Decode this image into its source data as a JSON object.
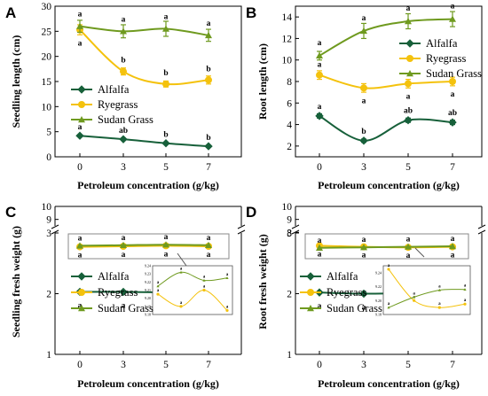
{
  "chart_data": [
    {
      "type": "line",
      "panel": "A",
      "ylabel": "Seedling length (cm)",
      "xlabel": "Petroleum concentration (g/kg)",
      "x": [
        0,
        3,
        5,
        7
      ],
      "xticks": [
        "0",
        "3",
        "5",
        "7"
      ],
      "ylim": [
        0,
        30
      ],
      "yticks": [
        0,
        5,
        10,
        15,
        20,
        25,
        30
      ],
      "legend": [
        "Alfalfa",
        "Ryegrass",
        "Sudan Grass"
      ],
      "series": [
        {
          "name": "Alfalfa",
          "values": [
            4.2,
            3.5,
            2.7,
            2.1
          ],
          "errors": [
            0.2,
            0.2,
            0.2,
            0.2
          ],
          "labels": [
            "a",
            "ab",
            "b",
            "b"
          ]
        },
        {
          "name": "Ryegrass",
          "values": [
            25.3,
            17.0,
            14.5,
            15.3
          ],
          "errors": [
            1.0,
            0.7,
            0.6,
            0.8
          ],
          "labels": [
            "a",
            "b",
            "b",
            "b"
          ]
        },
        {
          "name": "Sudan Grass",
          "values": [
            26.0,
            25.0,
            25.5,
            24.2
          ],
          "errors": [
            1.2,
            1.3,
            1.5,
            1.2
          ],
          "labels": [
            "a",
            "a",
            "a",
            "a"
          ]
        }
      ]
    },
    {
      "type": "line",
      "panel": "B",
      "ylabel": "Root length  (cm)",
      "xlabel": "Petroleum concentration  (g/kg)",
      "x": [
        0,
        3,
        5,
        7
      ],
      "xticks": [
        "0",
        "3",
        "5",
        "7"
      ],
      "ylim": [
        1,
        15
      ],
      "yticks": [
        2,
        4,
        6,
        8,
        10,
        12,
        14
      ],
      "legend": [
        "Alfalfa",
        "Ryegrass",
        "Sudan Grass"
      ],
      "series": [
        {
          "name": "Alfalfa",
          "values": [
            4.8,
            2.5,
            4.4,
            4.2
          ],
          "errors": [
            0.2,
            0.15,
            0.2,
            0.2
          ],
          "labels": [
            "a",
            "b",
            "ab",
            "ab"
          ]
        },
        {
          "name": "Ryegrass",
          "values": [
            8.6,
            7.4,
            7.8,
            8.0
          ],
          "errors": [
            0.4,
            0.4,
            0.4,
            0.4
          ],
          "labels": [
            "a",
            "a",
            "a",
            "a"
          ]
        },
        {
          "name": "Sudan Grass",
          "values": [
            10.4,
            12.7,
            13.6,
            13.8
          ],
          "errors": [
            0.4,
            0.7,
            0.7,
            0.7
          ],
          "labels": [
            "a",
            "a",
            "a",
            "a"
          ]
        }
      ]
    },
    {
      "type": "line",
      "panel": "C",
      "ylabel": "Seedling fresh weight (g)",
      "xlabel": "Petroleum concentration (g/kg)",
      "x": [
        0,
        3,
        5,
        7
      ],
      "xticks": [
        "0",
        "3",
        "5",
        "7"
      ],
      "broken_axis": {
        "lower": [
          1,
          3
        ],
        "upper": [
          8.5,
          10
        ]
      },
      "yticks": [
        "1",
        "2",
        "3",
        "9",
        "10"
      ],
      "legend": [
        "Alfalfa",
        "Ryegrass",
        "Sudan Grass"
      ],
      "series": [
        {
          "name": "Alfalfa",
          "values": [
            2.03,
            2.03,
            2.02,
            2.0
          ],
          "labels": [
            "a",
            "a",
            "a",
            "a"
          ]
        },
        {
          "name": "Ryegrass",
          "values": [
            9.35,
            9.36,
            9.37,
            9.36
          ],
          "labels": [
            "a",
            "a",
            "a",
            "a"
          ]
        },
        {
          "name": "Sudan Grass",
          "values": [
            9.37,
            9.38,
            9.39,
            9.38
          ],
          "labels": [
            "a",
            "a",
            "a",
            "a"
          ]
        }
      ],
      "inset": {
        "ylim": [
          9.18,
          9.24
        ],
        "yticks": [
          "9.18",
          "9.19",
          "9.20",
          "9.21",
          "9.22",
          "9.23",
          "9.24"
        ],
        "series": [
          {
            "name": "Ryegrass",
            "values": [
              9.205,
              9.19,
              9.21,
              9.185
            ],
            "labels": [
              "a",
              "a",
              "a",
              "a"
            ]
          },
          {
            "name": "Sudan Grass",
            "values": [
              9.215,
              9.232,
              9.222,
              9.225
            ],
            "labels": [
              "a",
              "a",
              "a",
              "a"
            ]
          }
        ]
      }
    },
    {
      "type": "line",
      "panel": "D",
      "ylabel": "Root fresh weight (g)",
      "xlabel": "Petroleum concentration  (g/kg)",
      "x": [
        0,
        3,
        5,
        7
      ],
      "xticks": [
        "0",
        "3",
        "5",
        "7"
      ],
      "broken_axis": {
        "lower": [
          1,
          3
        ],
        "upper": [
          8.5,
          10
        ]
      },
      "yticks": [
        "1",
        "2",
        "3",
        "8",
        "9",
        "10"
      ],
      "legend": [
        "Alfalfa",
        "Ryegrass",
        "Sudan Grass"
      ],
      "series": [
        {
          "name": "Alfalfa",
          "values": [
            2.02,
            2.0,
            2.01,
            2.02
          ],
          "labels": [
            "a",
            "a",
            "a",
            "a"
          ]
        },
        {
          "name": "Ryegrass",
          "values": [
            9.37,
            9.35,
            9.34,
            9.35
          ],
          "labels": [
            "a",
            "a",
            "a",
            "a"
          ]
        },
        {
          "name": "Sudan Grass",
          "values": [
            9.33,
            9.34,
            9.35,
            9.36
          ],
          "labels": [
            "a",
            "a",
            "a",
            "a"
          ]
        }
      ],
      "inset": {
        "ylim": [
          9.18,
          9.25
        ],
        "yticks": [
          "9.18",
          "9.20",
          "9.22",
          "9.24"
        ],
        "series": [
          {
            "name": "Ryegrass",
            "values": [
              9.245,
              9.2,
              9.19,
              9.195
            ],
            "labels": [
              "a",
              "a",
              "a",
              "a"
            ]
          },
          {
            "name": "Sudan Grass",
            "values": [
              9.19,
              9.205,
              9.215,
              9.216
            ],
            "labels": [
              "a",
              "a",
              "a",
              "a"
            ]
          }
        ]
      }
    }
  ],
  "colors": {
    "Alfalfa": "#17603a",
    "Ryegrass": "#f4c20d",
    "Sudan Grass": "#6f9a1f"
  }
}
